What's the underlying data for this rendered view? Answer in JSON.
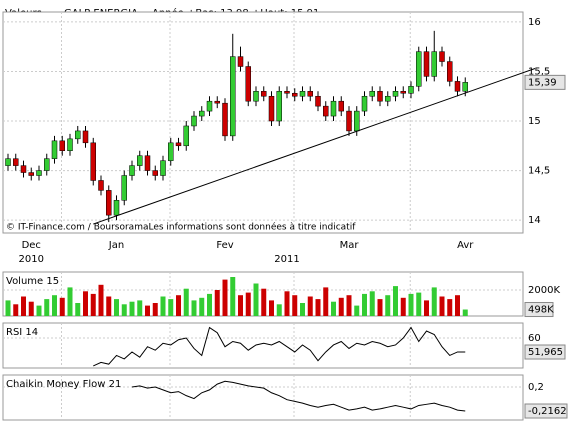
{
  "chart_data": {
    "type": "candlestick",
    "header": {
      "left": "Valeurs",
      "name": "GALP ENERGIA",
      "stats": "Année +Bas: 13,98 +Haut: 15,91"
    },
    "footer": "© IT-Finance.com / BoursoramaLes informations sont données à titre indicatif",
    "categories": [
      null,
      null,
      null,
      "Dec",
      null,
      null,
      null,
      null,
      null,
      null,
      null,
      null,
      null,
      null,
      "Jan",
      null,
      null,
      null,
      null,
      null,
      null,
      null,
      null,
      null,
      null,
      null,
      null,
      null,
      "Fev",
      null,
      null,
      null,
      null,
      null,
      null,
      null,
      null,
      null,
      null,
      null,
      null,
      null,
      null,
      null,
      "Mar",
      null,
      null,
      null,
      null,
      null,
      null,
      null,
      null,
      null,
      null,
      null,
      null,
      null,
      null,
      "Avr"
    ],
    "years": [
      null,
      null,
      null,
      "2010",
      null,
      null,
      null,
      null,
      null,
      null,
      null,
      null,
      null,
      null,
      null,
      null,
      null,
      null,
      null,
      null,
      null,
      null,
      null,
      null,
      null,
      null,
      null,
      null,
      null,
      null,
      null,
      null,
      null,
      null,
      null,
      null,
      "2011",
      null,
      null,
      null,
      null,
      null,
      null,
      null,
      null,
      null,
      null,
      null,
      null,
      null,
      null,
      null,
      null,
      null,
      null,
      null,
      null,
      null,
      null,
      null
    ],
    "open": [
      14.55,
      14.62,
      14.55,
      14.48,
      14.45,
      14.5,
      14.62,
      14.8,
      14.7,
      14.82,
      14.9,
      14.78,
      14.4,
      14.3,
      14.05,
      14.2,
      14.45,
      14.55,
      14.65,
      14.5,
      14.45,
      14.6,
      14.78,
      14.75,
      14.95,
      15.05,
      15.1,
      15.2,
      15.18,
      14.85,
      15.65,
      15.55,
      15.2,
      15.3,
      15.25,
      15.0,
      15.3,
      15.28,
      15.25,
      15.3,
      15.25,
      15.15,
      15.05,
      15.2,
      15.1,
      14.9,
      15.1,
      15.25,
      15.3,
      15.2,
      15.25,
      15.3,
      15.28,
      15.35,
      15.7,
      15.45,
      15.7,
      15.6,
      15.4,
      15.3
    ],
    "high": [
      14.67,
      14.67,
      14.6,
      14.53,
      14.55,
      14.67,
      14.85,
      14.85,
      14.87,
      14.95,
      14.95,
      14.83,
      14.45,
      14.35,
      14.25,
      14.5,
      14.6,
      14.7,
      14.7,
      14.55,
      14.65,
      14.83,
      14.83,
      15.0,
      15.1,
      15.15,
      15.25,
      15.25,
      15.23,
      15.88,
      15.75,
      15.6,
      15.35,
      15.35,
      15.3,
      15.35,
      15.35,
      15.33,
      15.35,
      15.35,
      15.3,
      15.2,
      15.25,
      15.25,
      15.15,
      15.15,
      15.3,
      15.35,
      15.35,
      15.3,
      15.35,
      15.35,
      15.4,
      15.75,
      15.75,
      15.91,
      15.75,
      15.65,
      15.45,
      15.44
    ],
    "low": [
      14.5,
      14.5,
      14.43,
      14.4,
      14.4,
      14.45,
      14.57,
      14.65,
      14.65,
      14.77,
      14.73,
      14.35,
      14.25,
      13.98,
      14.0,
      14.15,
      14.4,
      14.5,
      14.45,
      14.4,
      14.4,
      14.55,
      14.7,
      14.7,
      14.9,
      15.0,
      15.05,
      15.13,
      14.8,
      14.8,
      15.5,
      15.15,
      15.15,
      15.2,
      14.95,
      14.95,
      15.23,
      15.2,
      15.2,
      15.2,
      15.1,
      15.0,
      15.0,
      15.05,
      14.85,
      14.85,
      15.05,
      15.2,
      15.15,
      15.15,
      15.2,
      15.23,
      15.23,
      15.3,
      15.4,
      15.4,
      15.55,
      15.35,
      15.25,
      15.25
    ],
    "close": [
      14.62,
      14.55,
      14.48,
      14.45,
      14.5,
      14.62,
      14.8,
      14.7,
      14.82,
      14.9,
      14.78,
      14.4,
      14.3,
      14.05,
      14.2,
      14.45,
      14.55,
      14.65,
      14.5,
      14.45,
      14.6,
      14.78,
      14.75,
      14.95,
      15.05,
      15.1,
      15.2,
      15.18,
      14.85,
      15.65,
      15.55,
      15.2,
      15.3,
      15.25,
      15.0,
      15.3,
      15.28,
      15.25,
      15.3,
      15.25,
      15.15,
      15.05,
      15.2,
      15.1,
      14.9,
      15.1,
      15.25,
      15.3,
      15.2,
      15.25,
      15.3,
      15.28,
      15.35,
      15.7,
      15.45,
      15.7,
      15.6,
      15.4,
      15.3,
      15.39
    ],
    "last_label": "15,39",
    "up_color": "#33cc33",
    "down_color": "#cc0000",
    "ylim": [
      13.87,
      16.1
    ],
    "yticks": [
      14,
      {
        "value": 14.5,
        "label": "14,5"
      },
      15,
      {
        "value": 15.5,
        "label": "15,5"
      },
      16
    ],
    "trendline": [
      {
        "index": 11,
        "value": 13.96
      },
      {
        "index": 68,
        "value": 15.53
      }
    ],
    "volume": {
      "title": "Volume 15",
      "values": [
        1200,
        900,
        1500,
        1100,
        800,
        1300,
        1600,
        1400,
        2200,
        1000,
        1900,
        1700,
        2400,
        1500,
        1300,
        900,
        1100,
        1200,
        800,
        1000,
        1500,
        1300,
        1600,
        2100,
        1200,
        1400,
        1700,
        2000,
        2800,
        3000,
        1600,
        1800,
        2500,
        2100,
        1200,
        900,
        1900,
        1600,
        1000,
        1500,
        1300,
        2200,
        1100,
        1400,
        1600,
        800,
        1700,
        1900,
        1300,
        1600,
        2300,
        1400,
        1700,
        1800,
        1200,
        2200,
        1500,
        1300,
        1600,
        498
      ],
      "last_label": "498K",
      "ylim": [
        0,
        3385
      ],
      "yticks": [
        {
          "value": 2000,
          "label": "2000K"
        }
      ]
    },
    "rsi": {
      "title": "RSI 14",
      "color": "#000000",
      "values": [
        null,
        null,
        null,
        null,
        null,
        null,
        null,
        null,
        null,
        null,
        null,
        44,
        46,
        45,
        50,
        48,
        52,
        49,
        55,
        53,
        57,
        56,
        59,
        60,
        54,
        50,
        66,
        63,
        55,
        58,
        57,
        53,
        56,
        57,
        56,
        58,
        55,
        52,
        56,
        53,
        47,
        52,
        56,
        58,
        54,
        57,
        56,
        58,
        57,
        55,
        56,
        60,
        66,
        58,
        64,
        62,
        55,
        50,
        52,
        51.965
      ],
      "last_label": "51,965",
      "ylim": [
        42.8,
        68.6
      ],
      "yticks": [
        60
      ]
    },
    "cmf": {
      "title": "Chaikin Money Flow 21",
      "color": "#000000",
      "values": [
        null,
        null,
        null,
        null,
        null,
        null,
        null,
        null,
        null,
        null,
        null,
        null,
        null,
        null,
        null,
        null,
        0.2,
        0.22,
        0.18,
        0.2,
        0.15,
        0.1,
        0.12,
        0.05,
        0.0,
        0.1,
        0.15,
        0.25,
        0.3,
        0.28,
        0.25,
        0.22,
        0.2,
        0.18,
        0.1,
        0.05,
        -0.02,
        -0.05,
        -0.08,
        -0.12,
        -0.15,
        -0.12,
        -0.1,
        -0.15,
        -0.2,
        -0.18,
        -0.15,
        -0.2,
        -0.18,
        -0.15,
        -0.12,
        -0.15,
        -0.18,
        -0.12,
        -0.1,
        -0.08,
        -0.12,
        -0.15,
        -0.2,
        -0.2162
      ],
      "last_label": "-0,2162",
      "ylim": [
        -0.372,
        0.408
      ],
      "yticks": [
        {
          "value": 0.2,
          "label": "0,2"
        }
      ]
    }
  }
}
